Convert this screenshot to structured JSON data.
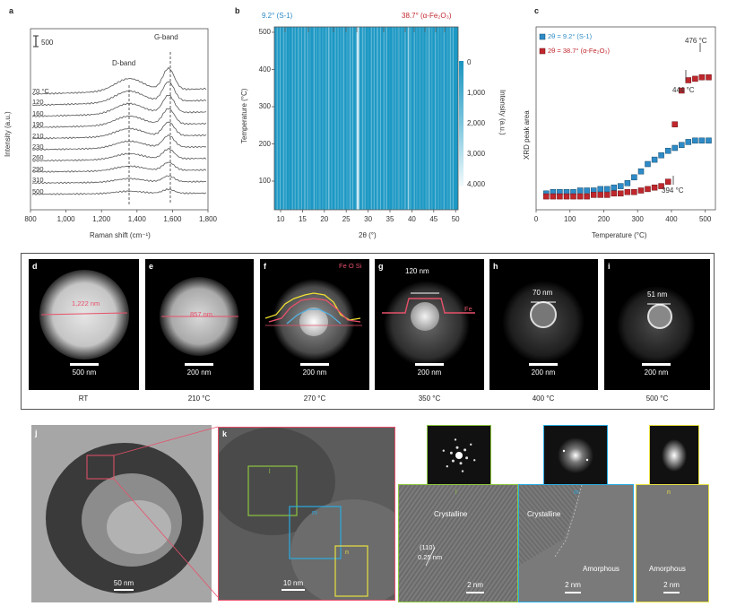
{
  "panel_a": {
    "label": "a",
    "scale_label": "500",
    "dband": "D-band",
    "gband": "G-band",
    "ylabel": "Intensity (a.u.)",
    "xlabel": "Raman shift (cm⁻¹)",
    "xticks": [
      "800",
      "1,000",
      "1,200",
      "1,400",
      "1,600",
      "1,800"
    ],
    "temps": [
      "70 °C",
      "120",
      "160",
      "190",
      "210",
      "230",
      "260",
      "290",
      "310",
      "500"
    ]
  },
  "panel_b": {
    "label": "b",
    "left_tag": "9.2° (S-1)",
    "right_tag": "38.7° (α-Fe₂O₃)",
    "ylabel": "Temperature (°C)",
    "xlabel": "2θ (°)",
    "yticks": [
      "500",
      "400",
      "300",
      "200",
      "100"
    ],
    "xticks": [
      "10",
      "15",
      "20",
      "25",
      "30",
      "35",
      "40",
      "45",
      "50"
    ],
    "cbar_label": "Intensity (a.u.)",
    "cbar_ticks": [
      "0",
      "1,000",
      "2,000",
      "3,000",
      "4,000"
    ]
  },
  "panel_c": {
    "label": "c",
    "legend_1": "2θ = 9.2° (S-1)",
    "legend_2": "2θ = 38.7° (α-Fe₂O₃)",
    "ylabel": "XRD peak area",
    "xlabel": "Temperature (°C)",
    "xticks": [
      "0",
      "100",
      "200",
      "300",
      "400",
      "500"
    ],
    "ann_476": "476 °C",
    "ann_444": "444 °C",
    "ann_394": "394 °C",
    "color_1": "#2e8bc7",
    "color_2": "#c0272d"
  },
  "chart_data": {
    "type": "scatter",
    "x": [
      30,
      50,
      70,
      90,
      110,
      130,
      150,
      170,
      190,
      210,
      230,
      250,
      270,
      290,
      310,
      330,
      350,
      370,
      390,
      410,
      430,
      450,
      470,
      490,
      510
    ],
    "series": [
      {
        "name": "2θ = 9.2° (S-1)",
        "values": [
          0.05,
          0.06,
          0.06,
          0.06,
          0.06,
          0.07,
          0.07,
          0.07,
          0.08,
          0.08,
          0.09,
          0.1,
          0.12,
          0.16,
          0.2,
          0.25,
          0.28,
          0.31,
          0.34,
          0.36,
          0.38,
          0.4,
          0.41,
          0.41,
          0.41
        ]
      },
      {
        "name": "2θ = 38.7° (α-Fe₂O₃)",
        "values": [
          0.03,
          0.03,
          0.03,
          0.03,
          0.03,
          0.03,
          0.03,
          0.04,
          0.04,
          0.04,
          0.05,
          0.05,
          0.06,
          0.06,
          0.07,
          0.08,
          0.09,
          0.1,
          0.13,
          0.52,
          0.75,
          0.82,
          0.83,
          0.84,
          0.84
        ]
      }
    ],
    "xlim": [
      0,
      530
    ],
    "ylim": [
      0,
      1
    ],
    "xlabel": "Temperature (°C)",
    "ylabel": "XRD peak area"
  },
  "tiles": [
    {
      "label": "d",
      "scale": "500 nm",
      "caption": "RT",
      "size": "1,222 nm"
    },
    {
      "label": "e",
      "scale": "200 nm",
      "caption": "210 °C",
      "size": "857 nm"
    },
    {
      "label": "f",
      "scale": "200 nm",
      "caption": "270 °C",
      "elements": "Fe O Si"
    },
    {
      "label": "g",
      "scale": "200 nm",
      "caption": "350 °C",
      "size": "120 nm",
      "element": "Fe"
    },
    {
      "label": "h",
      "scale": "200 nm",
      "caption": "400 °C",
      "size": "70 nm"
    },
    {
      "label": "i",
      "scale": "200 nm",
      "caption": "500 °C",
      "size": "51 nm"
    }
  ],
  "panel_j": {
    "label": "j",
    "scale": "50 nm"
  },
  "panel_k": {
    "label": "k",
    "scale": "10 nm",
    "box_l": "l",
    "box_m": "m",
    "box_n": "n"
  },
  "hrtem": {
    "l_label": "l",
    "l_text": "Crystalline",
    "l_plane": "(110)",
    "l_d": "0.25 nm",
    "l_scale": "2 nm",
    "m_label": "m",
    "m_text1": "Crystalline",
    "m_text2": "Amorphous",
    "m_scale": "2 nm",
    "n_label": "n",
    "n_text": "Amorphous",
    "n_scale": "2 nm"
  }
}
